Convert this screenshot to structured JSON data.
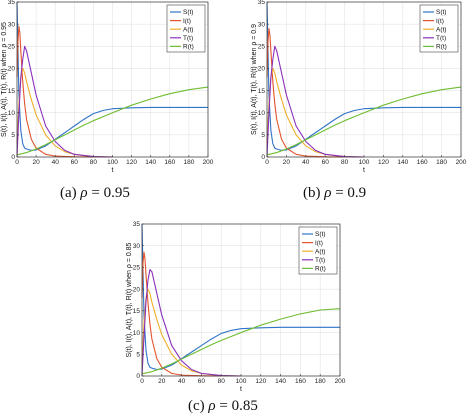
{
  "colors": {
    "S": "#2f73c8",
    "I": "#e2532c",
    "A": "#efaf27",
    "T": "#8a2fbd",
    "R": "#6fbd32"
  },
  "chart_data": [
    {
      "type": "line",
      "caption_prefix": "(a)",
      "caption_symbol": "ρ",
      "caption_rest": " = 0.95",
      "xlabel": "t",
      "ylabel": "S(t), I(t), A(t), T(t), R(t) when ρ = 0.95",
      "xlim": [
        0,
        200
      ],
      "ylim": [
        0,
        35
      ],
      "xticks": [
        0,
        20,
        40,
        60,
        80,
        100,
        120,
        140,
        160,
        180,
        200
      ],
      "yticks": [
        0,
        5,
        10,
        15,
        20,
        25,
        30,
        35
      ],
      "grid": true,
      "legend_position": "top-right",
      "series": [
        {
          "name": "S(t)",
          "key": "S",
          "x": [
            0,
            2,
            4,
            6,
            8,
            10,
            15,
            20,
            30,
            40,
            50,
            60,
            70,
            80,
            90,
            100,
            120,
            140,
            160,
            180,
            200
          ],
          "y": [
            35,
            14,
            6,
            3,
            2,
            1.8,
            1.5,
            1.6,
            2.5,
            4,
            5.5,
            7,
            8.5,
            9.8,
            10.5,
            10.9,
            11.1,
            11.2,
            11.2,
            11.2,
            11.2
          ]
        },
        {
          "name": "I(t)",
          "key": "I",
          "x": [
            0,
            1,
            2,
            3,
            4,
            6,
            8,
            10,
            15,
            20,
            30,
            40,
            60,
            80
          ],
          "y": [
            18,
            26,
            29.5,
            28,
            24,
            17,
            12,
            8.5,
            4,
            2,
            0.6,
            0.2,
            0.05,
            0
          ]
        },
        {
          "name": "A(t)",
          "key": "A",
          "x": [
            0,
            2,
            4,
            6,
            8,
            10,
            15,
            20,
            30,
            40,
            50,
            60,
            70,
            80,
            100
          ],
          "y": [
            3,
            12,
            18,
            20,
            19,
            17,
            13,
            9.5,
            5,
            2.5,
            1.2,
            0.6,
            0.3,
            0.1,
            0
          ]
        },
        {
          "name": "T(t)",
          "key": "T",
          "x": [
            0,
            2,
            4,
            6,
            8,
            10,
            15,
            20,
            30,
            40,
            50,
            60,
            80,
            100
          ],
          "y": [
            0,
            10,
            18,
            22,
            25,
            24,
            19,
            14,
            7,
            3.5,
            1.5,
            0.6,
            0.1,
            0
          ]
        },
        {
          "name": "R(t)",
          "key": "R",
          "x": [
            0,
            10,
            20,
            30,
            40,
            50,
            60,
            70,
            80,
            90,
            100,
            120,
            140,
            160,
            180,
            200
          ],
          "y": [
            0.5,
            1,
            1.8,
            2.8,
            3.9,
            5,
            6.1,
            7.2,
            8.2,
            9.1,
            10,
            11.7,
            13.1,
            14.3,
            15.2,
            15.8
          ]
        }
      ]
    },
    {
      "type": "line",
      "caption_prefix": "(b)",
      "caption_symbol": "ρ",
      "caption_rest": " = 0.9",
      "xlabel": "t",
      "ylabel": "S(t), I(t), A(t), T(t), R(t) when ρ = 0.9",
      "xlim": [
        0,
        200
      ],
      "ylim": [
        0,
        35
      ],
      "xticks": [
        0,
        20,
        40,
        60,
        80,
        100,
        120,
        140,
        160,
        180,
        200
      ],
      "yticks": [
        0,
        5,
        10,
        15,
        20,
        25,
        30,
        35
      ],
      "grid": true,
      "legend_position": "top-right",
      "series": [
        {
          "name": "S(t)",
          "key": "S",
          "x": [
            0,
            2,
            4,
            6,
            8,
            10,
            15,
            20,
            30,
            40,
            50,
            60,
            70,
            80,
            90,
            100,
            120,
            140,
            160,
            180,
            200
          ],
          "y": [
            35,
            14,
            6,
            3,
            2,
            1.8,
            1.5,
            1.6,
            2.5,
            4,
            5.5,
            7,
            8.5,
            9.8,
            10.5,
            10.9,
            11.1,
            11.2,
            11.2,
            11.2,
            11.2
          ]
        },
        {
          "name": "I(t)",
          "key": "I",
          "x": [
            0,
            1,
            2,
            3,
            4,
            6,
            8,
            10,
            15,
            20,
            30,
            40,
            60,
            80
          ],
          "y": [
            18,
            26,
            29,
            27.5,
            24,
            17,
            12,
            8.5,
            4,
            2,
            0.6,
            0.2,
            0.05,
            0
          ]
        },
        {
          "name": "A(t)",
          "key": "A",
          "x": [
            0,
            2,
            4,
            6,
            8,
            10,
            15,
            20,
            30,
            40,
            50,
            60,
            70,
            80,
            100
          ],
          "y": [
            3,
            12,
            18,
            20,
            19,
            17,
            13,
            9.5,
            5,
            2.5,
            1.2,
            0.6,
            0.3,
            0.1,
            0
          ]
        },
        {
          "name": "T(t)",
          "key": "T",
          "x": [
            0,
            2,
            4,
            6,
            8,
            10,
            15,
            20,
            30,
            40,
            50,
            60,
            80,
            100
          ],
          "y": [
            0,
            10,
            18,
            22,
            25,
            24,
            19,
            14,
            7,
            3.5,
            1.5,
            0.6,
            0.1,
            0
          ]
        },
        {
          "name": "R(t)",
          "key": "R",
          "x": [
            0,
            10,
            20,
            30,
            40,
            50,
            60,
            70,
            80,
            90,
            100,
            120,
            140,
            160,
            180,
            200
          ],
          "y": [
            0.5,
            1,
            1.8,
            2.8,
            3.9,
            5,
            6.1,
            7.2,
            8.2,
            9.1,
            10,
            11.7,
            13.1,
            14.3,
            15.2,
            15.8
          ]
        }
      ]
    },
    {
      "type": "line",
      "caption_prefix": "(c)",
      "caption_symbol": "ρ",
      "caption_rest": " = 0.85",
      "xlabel": "t",
      "ylabel": "S(t), I(t), A(t), T(t), R(t) when ρ = 0.85",
      "xlim": [
        0,
        200
      ],
      "ylim": [
        0,
        35
      ],
      "xticks": [
        0,
        20,
        40,
        60,
        80,
        100,
        120,
        140,
        160,
        180,
        200
      ],
      "yticks": [
        0,
        5,
        10,
        15,
        20,
        25,
        30,
        35
      ],
      "grid": true,
      "legend_position": "top-right",
      "series": [
        {
          "name": "S(t)",
          "key": "S",
          "x": [
            0,
            2,
            4,
            6,
            8,
            10,
            15,
            20,
            30,
            40,
            50,
            60,
            70,
            80,
            90,
            100,
            120,
            140,
            160,
            180,
            200
          ],
          "y": [
            35,
            14,
            6,
            3,
            2,
            1.8,
            1.5,
            1.6,
            2.5,
            4,
            5.5,
            7,
            8.5,
            9.8,
            10.5,
            10.9,
            11.1,
            11.2,
            11.2,
            11.2,
            11.2
          ]
        },
        {
          "name": "I(t)",
          "key": "I",
          "x": [
            0,
            1,
            2,
            3,
            4,
            6,
            8,
            10,
            15,
            20,
            30,
            40,
            60,
            80
          ],
          "y": [
            18,
            26,
            28.5,
            27,
            23.5,
            17,
            12,
            8.5,
            4,
            2,
            0.6,
            0.2,
            0.05,
            0
          ]
        },
        {
          "name": "A(t)",
          "key": "A",
          "x": [
            0,
            2,
            4,
            6,
            8,
            10,
            15,
            20,
            30,
            40,
            50,
            60,
            70,
            80,
            100
          ],
          "y": [
            3,
            12,
            18,
            20,
            19,
            17,
            13,
            9.5,
            5,
            2.5,
            1.2,
            0.6,
            0.3,
            0.1,
            0
          ]
        },
        {
          "name": "T(t)",
          "key": "T",
          "x": [
            0,
            2,
            4,
            6,
            8,
            10,
            15,
            20,
            30,
            40,
            50,
            60,
            80,
            100
          ],
          "y": [
            0,
            9,
            17,
            22,
            24.5,
            24,
            19,
            14,
            7,
            3.5,
            1.5,
            0.6,
            0.1,
            0
          ]
        },
        {
          "name": "R(t)",
          "key": "R",
          "x": [
            0,
            10,
            20,
            30,
            40,
            50,
            60,
            70,
            80,
            90,
            100,
            120,
            140,
            160,
            180,
            200
          ],
          "y": [
            0.5,
            1,
            1.8,
            2.8,
            3.9,
            5,
            6.1,
            7.2,
            8.2,
            9.1,
            10,
            11.7,
            13.1,
            14.3,
            15.2,
            15.5
          ]
        }
      ]
    }
  ]
}
